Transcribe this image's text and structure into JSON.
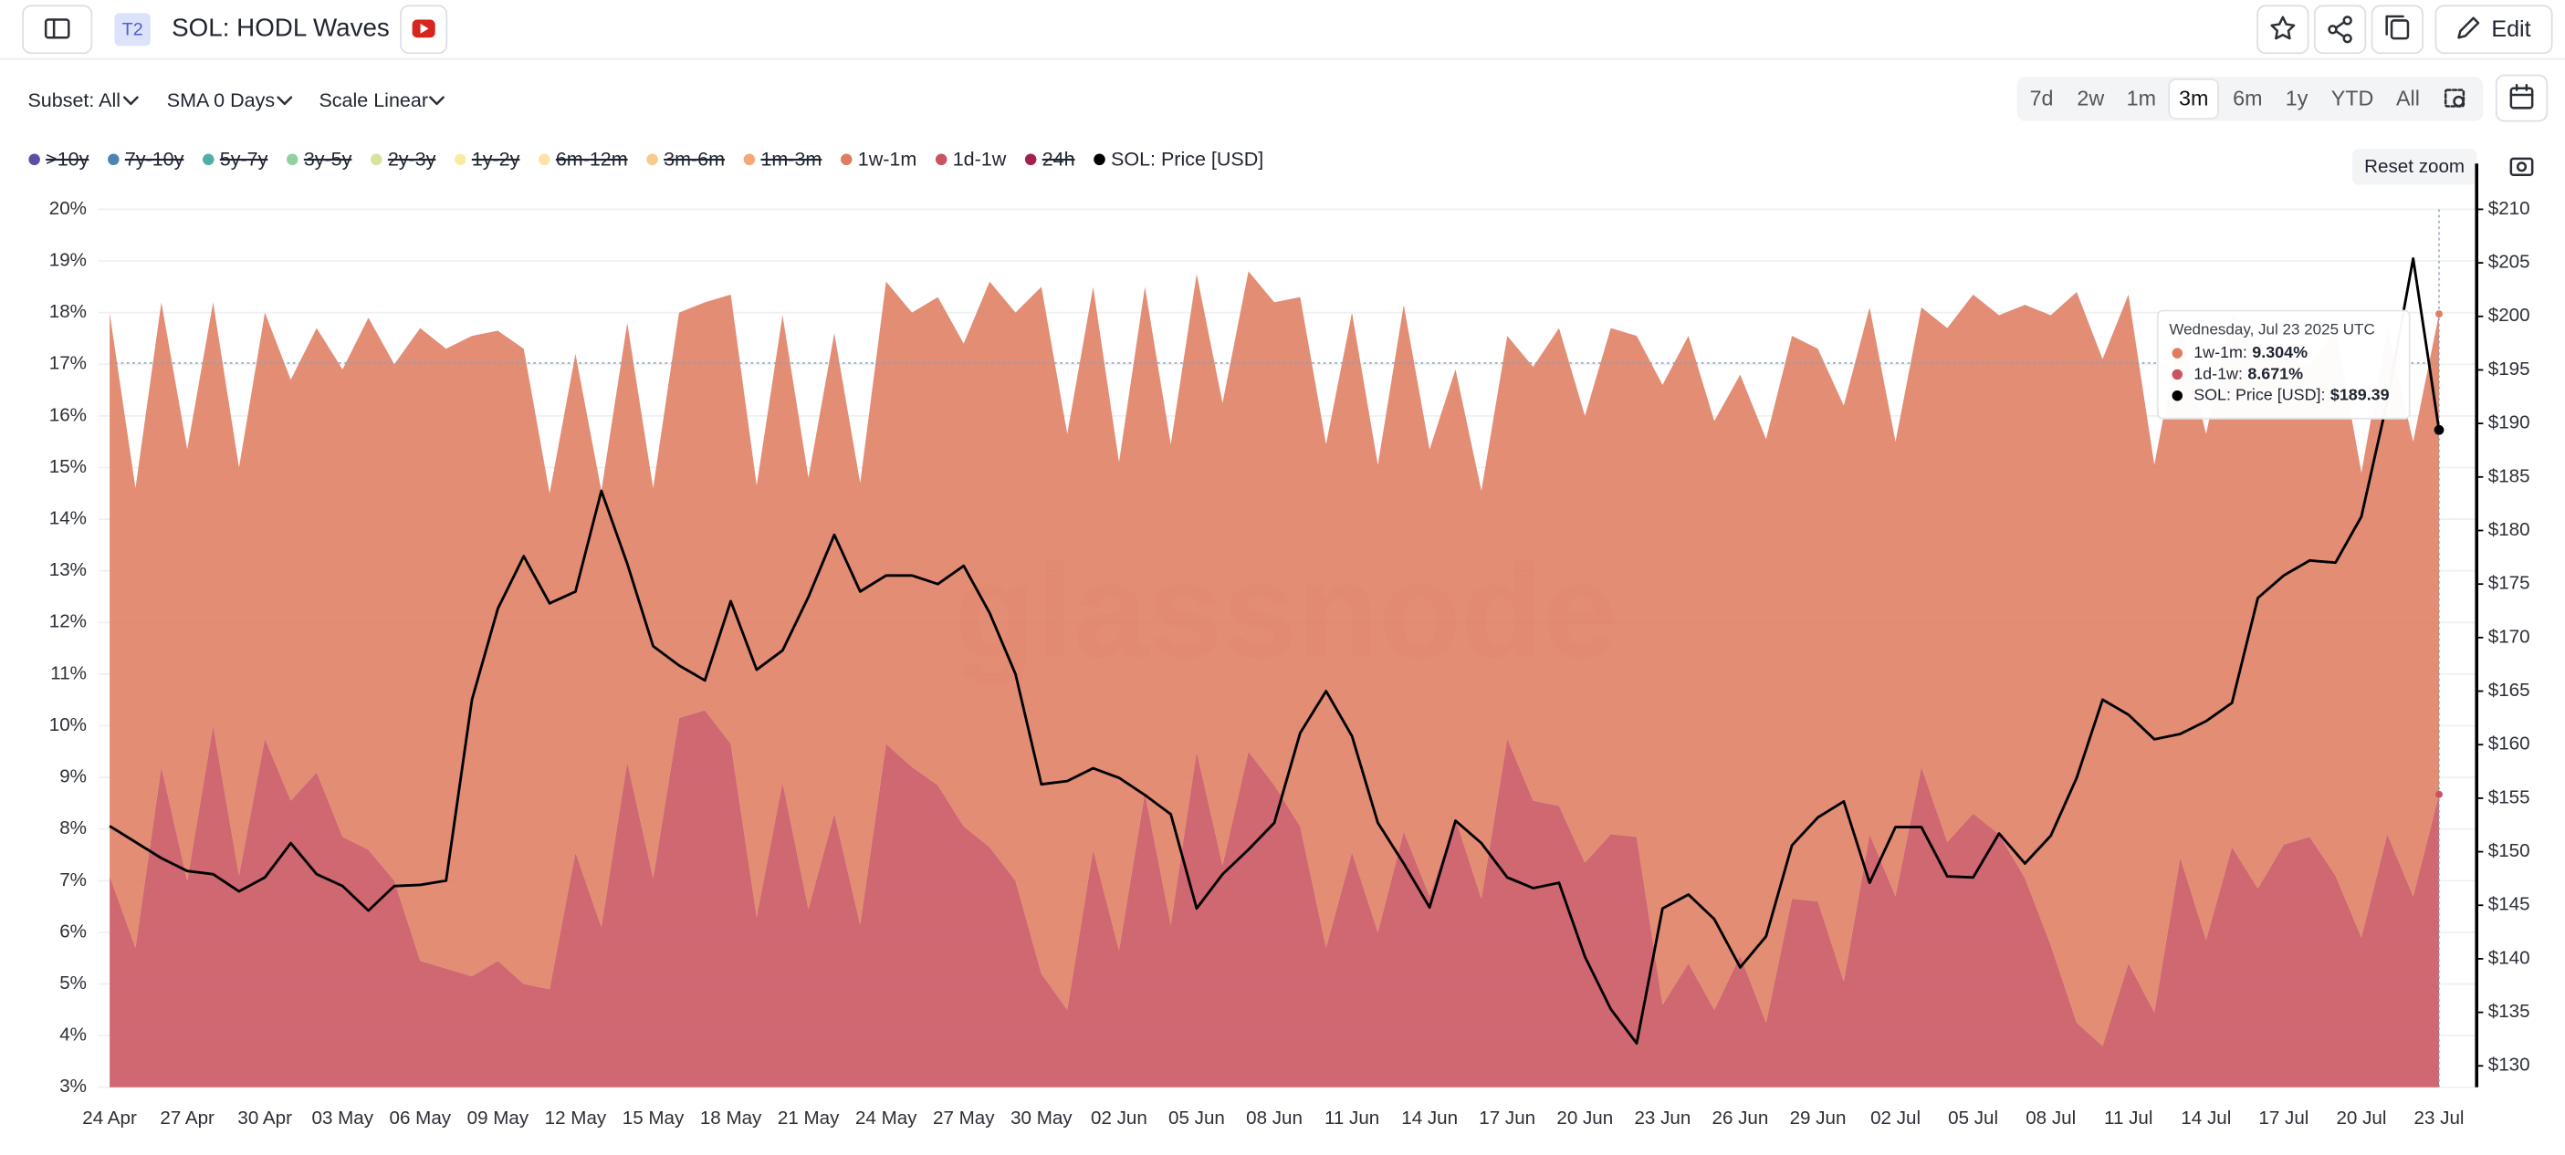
{
  "header": {
    "badge": "T2",
    "title": "SOL: HODL Waves",
    "edit": "Edit"
  },
  "toolbar": {
    "subset": "Subset: All",
    "sma": "SMA 0 Days",
    "scale": "Scale Linear",
    "ranges": [
      "7d",
      "2w",
      "1m",
      "3m",
      "6m",
      "1y",
      "YTD",
      "All"
    ],
    "active_range": 3,
    "reset_zoom": "Reset zoom"
  },
  "chart_data": {
    "type": "area",
    "stacked": true,
    "watermark": "glassnode",
    "categories": [
      "24 Apr",
      null,
      null,
      "27 Apr",
      null,
      null,
      "30 Apr",
      null,
      null,
      "03 May",
      null,
      null,
      "06 May",
      null,
      null,
      "09 May",
      null,
      null,
      "12 May",
      null,
      null,
      "15 May",
      null,
      null,
      "18 May",
      null,
      null,
      "21 May",
      null,
      null,
      "24 May",
      null,
      null,
      "27 May",
      null,
      null,
      "30 May",
      null,
      null,
      "02 Jun",
      null,
      null,
      "05 Jun",
      null,
      null,
      "08 Jun",
      null,
      null,
      "11 Jun",
      null,
      null,
      "14 Jun",
      null,
      null,
      "17 Jun",
      null,
      null,
      "20 Jun",
      null,
      null,
      "23 Jun",
      null,
      null,
      "26 Jun",
      null,
      null,
      "29 Jun",
      null,
      null,
      "02 Jul",
      null,
      null,
      "05 Jul",
      null,
      null,
      "08 Jul",
      null,
      null,
      "11 Jul",
      null,
      null,
      "14 Jul",
      null,
      null,
      "17 Jul",
      null,
      null,
      "20 Jul",
      null,
      null,
      "23 Jul"
    ],
    "ylim": [
      3,
      20
    ],
    "yticks": [
      {
        "value": 3,
        "label": "3%"
      },
      {
        "value": 4,
        "label": "4%"
      },
      {
        "value": 5,
        "label": "5%"
      },
      {
        "value": 6,
        "label": "6%"
      },
      {
        "value": 7,
        "label": "7%"
      },
      {
        "value": 8,
        "label": "8%"
      },
      {
        "value": 9,
        "label": "9%"
      },
      {
        "value": 10,
        "label": "10%"
      },
      {
        "value": 11,
        "label": "11%"
      },
      {
        "value": 12,
        "label": "12%"
      },
      {
        "value": 13,
        "label": "13%"
      },
      {
        "value": 14,
        "label": "14%"
      },
      {
        "value": 15,
        "label": "15%"
      },
      {
        "value": 16,
        "label": "16%"
      },
      {
        "value": 17,
        "label": "17%"
      },
      {
        "value": 18,
        "label": "18%"
      },
      {
        "value": 19,
        "label": "19%"
      },
      {
        "value": 20,
        "label": "20%"
      }
    ],
    "y2lim": [
      128,
      210
    ],
    "y2ticks": [
      {
        "value": 130,
        "label": "$130"
      },
      {
        "value": 135,
        "label": "$135"
      },
      {
        "value": 140,
        "label": "$140"
      },
      {
        "value": 145,
        "label": "$145"
      },
      {
        "value": 150,
        "label": "$150"
      },
      {
        "value": 155,
        "label": "$155"
      },
      {
        "value": 160,
        "label": "$160"
      },
      {
        "value": 165,
        "label": "$165"
      },
      {
        "value": 170,
        "label": "$170"
      },
      {
        "value": 175,
        "label": "$175"
      },
      {
        "value": 180,
        "label": "$180"
      },
      {
        "value": 185,
        "label": "$185"
      },
      {
        "value": 190,
        "label": "$190"
      },
      {
        "value": 195,
        "label": "$195"
      },
      {
        "value": 200,
        "label": "$200"
      },
      {
        "value": 205,
        "label": "$205"
      },
      {
        "value": 210,
        "label": "$210"
      }
    ],
    "grid": true,
    "series": [
      {
        "name": ">10y",
        "color": "#5b4fa8",
        "hidden": true
      },
      {
        "name": "7y-10y",
        "color": "#4f83b5",
        "hidden": true
      },
      {
        "name": "5y-7y",
        "color": "#4fb0a5",
        "hidden": true
      },
      {
        "name": "3y-5y",
        "color": "#8fd1a1",
        "hidden": true
      },
      {
        "name": "2y-3y",
        "color": "#d5e59c",
        "hidden": true
      },
      {
        "name": "1y-2y",
        "color": "#f6ee9e",
        "hidden": true
      },
      {
        "name": "6m-12m",
        "color": "#fde3a6",
        "hidden": true
      },
      {
        "name": "3m-6m",
        "color": "#f9c98d",
        "hidden": true
      },
      {
        "name": "1m-3m",
        "color": "#f3a87a",
        "hidden": true
      },
      {
        "name": "1w-1m",
        "color": "#df7d62",
        "values": [
          10.9,
          8.9,
          9.0,
          8.35,
          8.2,
          7.9,
          8.25,
          8.15,
          8.6,
          9.05,
          10.3,
          10.0,
          12.25,
          12.0,
          12.4,
          12.2,
          12.3,
          9.6,
          9.65,
          8.45,
          8.5,
          7.55,
          7.85,
          7.9,
          8.7,
          8.35,
          9.05,
          8.35,
          9.3,
          8.55,
          8.95,
          8.8,
          9.45,
          9.35,
          10.95,
          11.0,
          13.3,
          11.15,
          10.9,
          9.45,
          9.8,
          9.3,
          9.25,
          8.95,
          9.3,
          9.35,
          10.25,
          9.75,
          10.45,
          9.05,
          10.2,
          8.65,
          8.7,
          7.9,
          7.8,
          8.4,
          9.25,
          8.65,
          9.8,
          9.7,
          12.0,
          12.15,
          11.4,
          11.25,
          11.3,
          10.9,
          10.7,
          11.15,
          10.2,
          8.8,
          8.9,
          9.95,
          10.05,
          10.05,
          11.1,
          12.2,
          14.15,
          13.3,
          12.95,
          10.6,
          10.25,
          9.8,
          10.35,
          10.4,
          9.45,
          9.1,
          10.6,
          9.0,
          9.8,
          8.8,
          9.304
        ]
      },
      {
        "name": "1d-1w",
        "color": "#c9535f",
        "values": [
          7.1,
          5.7,
          9.2,
          7.0,
          10.0,
          7.1,
          9.75,
          8.55,
          9.1,
          7.85,
          7.6,
          7.0,
          5.45,
          5.3,
          5.15,
          5.45,
          5.0,
          4.9,
          7.55,
          6.1,
          9.3,
          7.05,
          10.15,
          10.3,
          9.65,
          6.3,
          8.9,
          6.45,
          8.3,
          6.15,
          9.65,
          9.2,
          8.85,
          8.05,
          7.65,
          7.0,
          5.2,
          4.5,
          7.6,
          5.65,
          8.7,
          6.15,
          9.5,
          7.3,
          9.5,
          8.85,
          8.05,
          5.7,
          7.55,
          6.0,
          7.95,
          6.7,
          8.2,
          6.65,
          9.75,
          8.55,
          8.45,
          7.35,
          7.9,
          7.85,
          4.6,
          5.4,
          4.5,
          5.55,
          4.25,
          6.65,
          6.6,
          5.05,
          7.9,
          6.7,
          9.2,
          7.75,
          8.3,
          7.9,
          7.05,
          5.75,
          4.25,
          3.8,
          5.4,
          4.45,
          7.45,
          5.85,
          7.65,
          6.85,
          7.7,
          7.85,
          7.1,
          5.9,
          7.9,
          6.7,
          8.671
        ]
      },
      {
        "name": "24h",
        "color": "#a3224a",
        "hidden": true
      },
      {
        "name": "SOL: Price [USD]",
        "color": "#000000",
        "type": "line",
        "axis": "y2",
        "values": [
          152.4,
          150.9,
          149.4,
          148.2,
          147.9,
          146.3,
          147.6,
          150.8,
          147.9,
          146.8,
          144.5,
          146.8,
          146.9,
          147.3,
          164.2,
          172.7,
          177.6,
          173.2,
          174.3,
          183.7,
          176.9,
          169.2,
          167.4,
          166.0,
          173.4,
          167.0,
          168.8,
          173.8,
          179.6,
          174.3,
          175.8,
          175.8,
          175.0,
          176.7,
          172.3,
          166.6,
          156.3,
          156.6,
          157.8,
          156.9,
          155.3,
          153.5,
          144.7,
          147.9,
          150.2,
          152.7,
          161.1,
          165.0,
          160.8,
          152.7,
          148.9,
          144.8,
          152.9,
          150.8,
          147.6,
          146.6,
          147.1,
          140.2,
          135.3,
          132.1,
          144.7,
          146.0,
          143.7,
          139.2,
          142.1,
          150.6,
          153.2,
          154.7,
          147.1,
          152.3,
          152.3,
          147.7,
          147.6,
          151.7,
          148.9,
          151.5,
          156.9,
          164.2,
          162.8,
          160.5,
          161.0,
          162.2,
          163.9,
          173.7,
          175.8,
          177.2,
          177.0,
          181.3,
          192.1,
          205.4,
          189.39
        ]
      }
    ],
    "tooltip": {
      "title": "Wednesday, Jul 23 2025 UTC",
      "items": [
        {
          "series": 9,
          "name": "1w-1m:",
          "value_label": "9.304%"
        },
        {
          "series": 10,
          "name": "1d-1w:",
          "value_label": "8.671%"
        },
        {
          "series": 12,
          "name": "SOL: Price [USD]:",
          "value_label": "$189.39"
        }
      ]
    }
  }
}
